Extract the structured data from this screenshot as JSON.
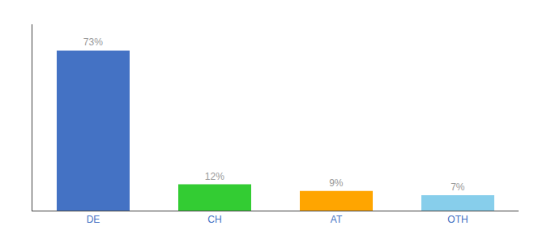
{
  "chart_data": {
    "type": "bar",
    "categories": [
      "DE",
      "CH",
      "AT",
      "OTH"
    ],
    "values": [
      73,
      12,
      9,
      7
    ],
    "value_labels": [
      "73%",
      "12%",
      "9%",
      "7%"
    ],
    "data_labels": true,
    "colors": [
      "#4472C4",
      "#33CC33",
      "#FFA500",
      "#87CEEB"
    ],
    "ylim": [
      0,
      85
    ],
    "yticks": [],
    "tick_labels": "x",
    "grid": false
  }
}
